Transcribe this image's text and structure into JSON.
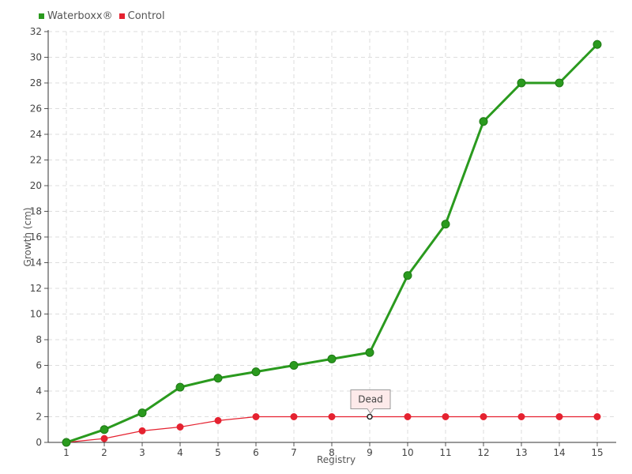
{
  "chart_data": {
    "type": "line",
    "title": "",
    "xlabel": "Registry",
    "ylabel": "Growth (cm)",
    "categories": [
      1,
      2,
      3,
      4,
      5,
      6,
      7,
      8,
      9,
      10,
      11,
      12,
      13,
      14,
      15
    ],
    "xlim": [
      1,
      15
    ],
    "ylim": [
      0,
      32
    ],
    "ytick_step": 2,
    "grid": true,
    "legend_position": "top-left",
    "series": [
      {
        "name": "Waterboxx®",
        "color": "#2a9a1e",
        "values": [
          0,
          1,
          2.3,
          4.3,
          5,
          5.5,
          6,
          6.5,
          7,
          13,
          17,
          25,
          28,
          28,
          31
        ]
      },
      {
        "name": "Control",
        "color": "#e52230",
        "values": [
          0,
          0.3,
          0.9,
          1.2,
          1.7,
          2,
          2,
          2,
          2,
          2,
          2,
          2,
          2,
          2,
          2
        ]
      }
    ],
    "annotations": [
      {
        "text": "Dead",
        "series": "Control",
        "x": 9,
        "y": 2
      }
    ]
  }
}
